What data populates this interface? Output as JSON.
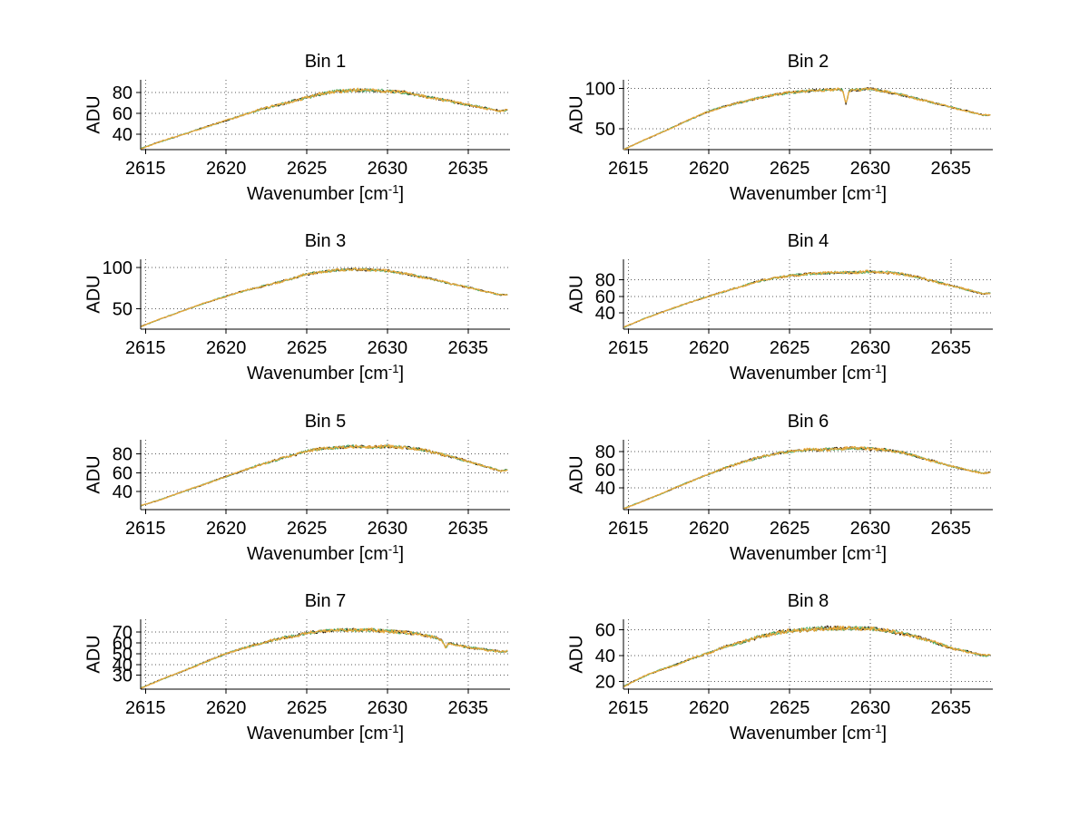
{
  "figure": {
    "background": "#ffffff"
  },
  "labels": {
    "xlabel_prefix": "Wavenumber [cm",
    "xlabel_sup": "-1",
    "xlabel_suffix": "]",
    "ylabel": "ADU"
  },
  "series": [
    {
      "name": "trace-dark",
      "color": "#241307",
      "width": 1
    },
    {
      "name": "trace-green",
      "color": "#52b06c",
      "width": 1
    },
    {
      "name": "trace-gold",
      "color": "#e7a73a",
      "width": 1.3
    }
  ],
  "chart_data": [
    {
      "type": "line",
      "title": "Bin 1",
      "ylabel": "ADU",
      "xlabel": "Wavenumber [cm⁻¹]",
      "grid": true,
      "legend": false,
      "xlim": [
        2614.7,
        2637.6
      ],
      "ylim": [
        25,
        92
      ],
      "xticks": [
        2615,
        2620,
        2625,
        2630,
        2635
      ],
      "yticks": [
        40,
        60,
        80
      ],
      "x": [
        2614.7,
        2616,
        2617,
        2618,
        2619,
        2620,
        2621,
        2622,
        2623,
        2624,
        2625,
        2626,
        2627,
        2628,
        2629,
        2630,
        2631,
        2632,
        2633,
        2634,
        2635,
        2636,
        2637,
        2637.4
      ],
      "y": [
        26,
        33,
        38,
        43,
        48,
        53,
        58,
        63,
        67,
        71,
        75,
        79,
        81,
        82,
        82,
        81,
        80,
        77,
        74,
        71,
        68,
        65,
        62,
        63
      ],
      "spikes": []
    },
    {
      "type": "line",
      "title": "Bin 2",
      "ylabel": "ADU",
      "xlabel": "Wavenumber [cm⁻¹]",
      "grid": true,
      "legend": false,
      "xlim": [
        2614.7,
        2637.6
      ],
      "ylim": [
        24,
        111
      ],
      "xticks": [
        2615,
        2620,
        2625,
        2630,
        2635
      ],
      "yticks": [
        50,
        100
      ],
      "x": [
        2614.7,
        2616,
        2617,
        2618,
        2619,
        2620,
        2621,
        2622,
        2623,
        2624,
        2625,
        2626,
        2627,
        2628,
        2629,
        2630,
        2631,
        2632,
        2633,
        2634,
        2635,
        2636,
        2637,
        2637.4
      ],
      "y": [
        24,
        36,
        45,
        54,
        63,
        72,
        78,
        83,
        88,
        92,
        95,
        97,
        98,
        99,
        98,
        100,
        96,
        92,
        87,
        82,
        77,
        72,
        67,
        67
      ],
      "spikes": [
        {
          "x": 2628.5,
          "depth": 17,
          "width": 0.13
        }
      ]
    },
    {
      "type": "line",
      "title": "Bin 3",
      "ylabel": "ADU",
      "xlabel": "Wavenumber [cm⁻¹]",
      "grid": true,
      "legend": false,
      "xlim": [
        2614.7,
        2637.6
      ],
      "ylim": [
        25,
        110
      ],
      "xticks": [
        2615,
        2620,
        2625,
        2630,
        2635
      ],
      "yticks": [
        50,
        100
      ],
      "x": [
        2614.7,
        2616,
        2617,
        2618,
        2619,
        2620,
        2621,
        2622,
        2623,
        2624,
        2625,
        2626,
        2627,
        2628,
        2629,
        2630,
        2631,
        2632,
        2633,
        2634,
        2635,
        2636,
        2637,
        2637.4
      ],
      "y": [
        28,
        38,
        45,
        52,
        59,
        65,
        71,
        76,
        81,
        86,
        92,
        95,
        97,
        98,
        97,
        96,
        93,
        89,
        85,
        80,
        76,
        71,
        67,
        67
      ],
      "spikes": []
    },
    {
      "type": "line",
      "title": "Bin 4",
      "ylabel": "ADU",
      "xlabel": "Wavenumber [cm⁻¹]",
      "grid": true,
      "legend": false,
      "xlim": [
        2614.7,
        2637.6
      ],
      "ylim": [
        20,
        105
      ],
      "xticks": [
        2615,
        2620,
        2625,
        2630,
        2635
      ],
      "yticks": [
        40,
        60,
        80
      ],
      "x": [
        2614.7,
        2616,
        2617,
        2618,
        2619,
        2620,
        2621,
        2622,
        2623,
        2624,
        2625,
        2626,
        2627,
        2628,
        2629,
        2630,
        2631,
        2632,
        2633,
        2634,
        2635,
        2636,
        2637,
        2637.4
      ],
      "y": [
        22,
        33,
        40,
        47,
        54,
        60,
        66,
        72,
        78,
        82,
        85,
        87,
        88,
        89,
        89,
        90,
        89,
        87,
        83,
        78,
        73,
        68,
        63,
        64
      ],
      "spikes": []
    },
    {
      "type": "line",
      "title": "Bin 5",
      "ylabel": "ADU",
      "xlabel": "Wavenumber [cm⁻¹]",
      "grid": true,
      "legend": false,
      "xlim": [
        2614.7,
        2637.6
      ],
      "ylim": [
        21,
        95
      ],
      "xticks": [
        2615,
        2620,
        2625,
        2630,
        2635
      ],
      "yticks": [
        40,
        60,
        80
      ],
      "x": [
        2614.7,
        2616,
        2617,
        2618,
        2619,
        2620,
        2621,
        2622,
        2623,
        2624,
        2625,
        2626,
        2627,
        2628,
        2629,
        2630,
        2631,
        2632,
        2633,
        2634,
        2635,
        2636,
        2637,
        2637.4
      ],
      "y": [
        25,
        32,
        38,
        44,
        50,
        56,
        62,
        68,
        73,
        78,
        83,
        86,
        87,
        88,
        87,
        88,
        87,
        85,
        81,
        77,
        72,
        67,
        62,
        63
      ],
      "spikes": []
    },
    {
      "type": "line",
      "title": "Bin 6",
      "ylabel": "ADU",
      "xlabel": "Wavenumber [cm⁻¹]",
      "grid": true,
      "legend": false,
      "xlim": [
        2614.7,
        2637.6
      ],
      "ylim": [
        16,
        93
      ],
      "xticks": [
        2615,
        2620,
        2625,
        2630,
        2635
      ],
      "yticks": [
        40,
        60,
        80
      ],
      "x": [
        2614.7,
        2616,
        2617,
        2618,
        2619,
        2620,
        2621,
        2622,
        2623,
        2624,
        2625,
        2626,
        2627,
        2628,
        2629,
        2630,
        2631,
        2632,
        2633,
        2634,
        2635,
        2636,
        2637,
        2637.4
      ],
      "y": [
        17,
        26,
        33,
        41,
        48,
        55,
        62,
        68,
        73,
        77,
        80,
        82,
        82,
        83,
        84,
        83,
        82,
        79,
        74,
        69,
        64,
        60,
        56,
        57
      ],
      "spikes": []
    },
    {
      "type": "line",
      "title": "Bin 7",
      "ylabel": "ADU",
      "xlabel": "Wavenumber [cm⁻¹]",
      "grid": true,
      "legend": false,
      "xlim": [
        2614.7,
        2637.6
      ],
      "ylim": [
        17,
        82
      ],
      "xticks": [
        2615,
        2620,
        2625,
        2630,
        2635
      ],
      "yticks": [
        30,
        40,
        50,
        60,
        70
      ],
      "x": [
        2614.7,
        2616,
        2617,
        2618,
        2619,
        2620,
        2621,
        2622,
        2623,
        2624,
        2625,
        2626,
        2627,
        2628,
        2629,
        2630,
        2631,
        2632,
        2633,
        2634,
        2635,
        2636,
        2637,
        2637.4
      ],
      "y": [
        18,
        26,
        32,
        38,
        44,
        50,
        55,
        59,
        63,
        66,
        69,
        71,
        72,
        72,
        72,
        71,
        70,
        68,
        65,
        59,
        56,
        54,
        52,
        52
      ],
      "spikes": [
        {
          "x": 2633.6,
          "depth": 5,
          "width": 0.15
        }
      ]
    },
    {
      "type": "line",
      "title": "Bin 8",
      "ylabel": "ADU",
      "xlabel": "Wavenumber [cm⁻¹]",
      "grid": true,
      "legend": false,
      "xlim": [
        2614.7,
        2637.6
      ],
      "ylim": [
        14,
        68
      ],
      "xticks": [
        2615,
        2620,
        2625,
        2630,
        2635
      ],
      "yticks": [
        20,
        40,
        60
      ],
      "x": [
        2614.7,
        2616,
        2617,
        2618,
        2619,
        2620,
        2621,
        2622,
        2623,
        2624,
        2625,
        2626,
        2627,
        2628,
        2629,
        2630,
        2631,
        2632,
        2633,
        2634,
        2635,
        2636,
        2637,
        2637.4
      ],
      "y": [
        16,
        24,
        29,
        33,
        38,
        42,
        47,
        50,
        54,
        57,
        59,
        60,
        61,
        61,
        61,
        61,
        59,
        57,
        54,
        50,
        46,
        43,
        40,
        40
      ],
      "spikes": []
    }
  ]
}
